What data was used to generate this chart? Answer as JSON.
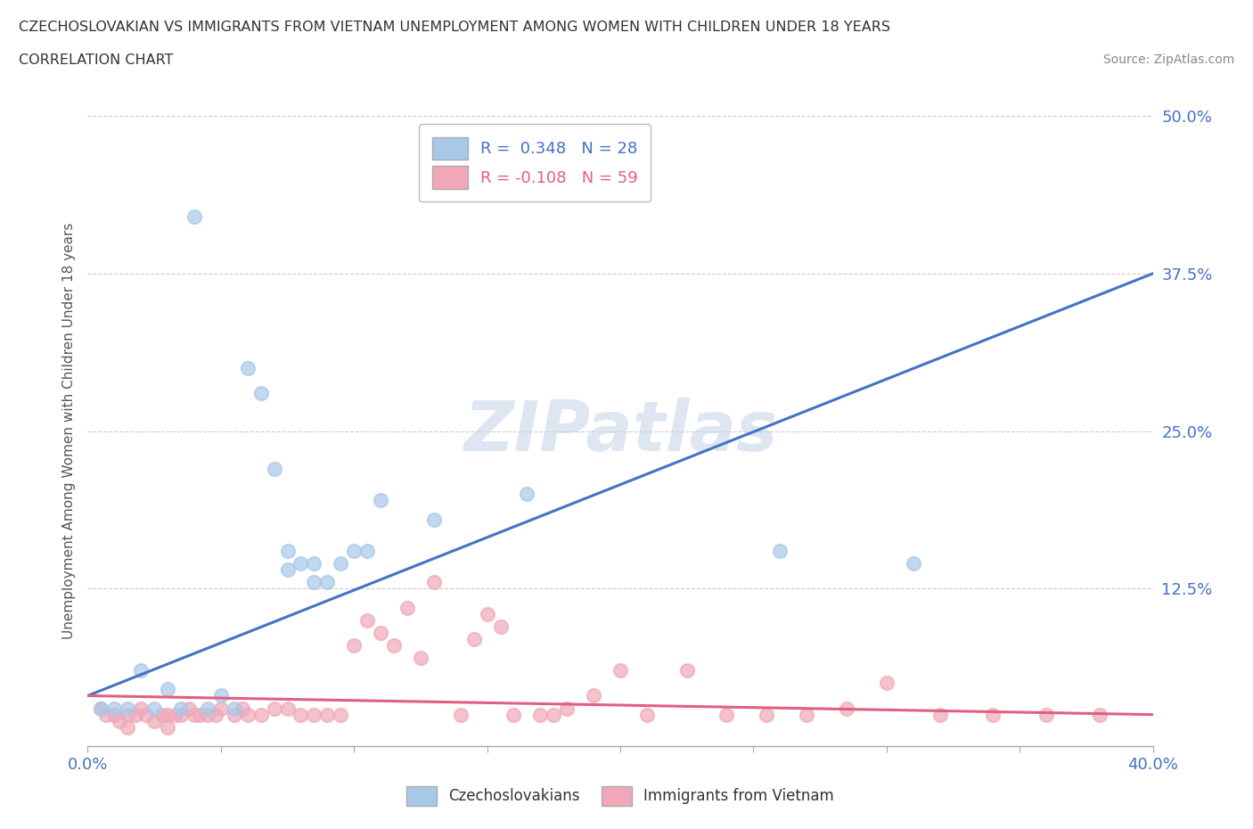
{
  "title_line1": "CZECHOSLOVAKIAN VS IMMIGRANTS FROM VIETNAM UNEMPLOYMENT AMONG WOMEN WITH CHILDREN UNDER 18 YEARS",
  "title_line2": "CORRELATION CHART",
  "source": "Source: ZipAtlas.com",
  "ylabel": "Unemployment Among Women with Children Under 18 years",
  "xlim": [
    0.0,
    0.4
  ],
  "ylim": [
    0.0,
    0.5
  ],
  "yticks": [
    0.0,
    0.125,
    0.25,
    0.375,
    0.5
  ],
  "ytick_labels": [
    "",
    "12.5%",
    "25.0%",
    "37.5%",
    "50.0%"
  ],
  "xticks": [
    0.0,
    0.05,
    0.1,
    0.15,
    0.2,
    0.25,
    0.3,
    0.35,
    0.4
  ],
  "xtick_labels": [
    "0.0%",
    "",
    "",
    "",
    "",
    "",
    "",
    "",
    "40.0%"
  ],
  "legend_r1": "R =  0.348   N = 28",
  "legend_r2": "R = -0.108   N = 59",
  "blue_color": "#A8C8E8",
  "pink_color": "#F0A8B8",
  "line_blue": "#4472C4",
  "line_pink": "#E06080",
  "watermark": "ZIPatlas",
  "czecho_points_x": [
    0.005,
    0.01,
    0.015,
    0.02,
    0.025,
    0.03,
    0.035,
    0.04,
    0.045,
    0.05,
    0.055,
    0.06,
    0.065,
    0.07,
    0.075,
    0.075,
    0.08,
    0.085,
    0.085,
    0.09,
    0.095,
    0.1,
    0.105,
    0.11,
    0.13,
    0.165,
    0.26,
    0.31
  ],
  "czecho_points_y": [
    0.03,
    0.03,
    0.03,
    0.06,
    0.03,
    0.045,
    0.03,
    0.42,
    0.03,
    0.04,
    0.03,
    0.3,
    0.28,
    0.22,
    0.155,
    0.14,
    0.145,
    0.13,
    0.145,
    0.13,
    0.145,
    0.155,
    0.155,
    0.195,
    0.18,
    0.2,
    0.155,
    0.145
  ],
  "vietnam_points_x": [
    0.005,
    0.007,
    0.01,
    0.012,
    0.015,
    0.015,
    0.018,
    0.02,
    0.022,
    0.025,
    0.028,
    0.03,
    0.03,
    0.033,
    0.035,
    0.038,
    0.04,
    0.042,
    0.045,
    0.048,
    0.05,
    0.055,
    0.058,
    0.06,
    0.065,
    0.07,
    0.075,
    0.08,
    0.085,
    0.09,
    0.095,
    0.1,
    0.105,
    0.11,
    0.115,
    0.12,
    0.125,
    0.13,
    0.14,
    0.145,
    0.15,
    0.155,
    0.16,
    0.17,
    0.175,
    0.18,
    0.19,
    0.2,
    0.21,
    0.225,
    0.24,
    0.255,
    0.27,
    0.285,
    0.3,
    0.32,
    0.34,
    0.36,
    0.38
  ],
  "vietnam_points_y": [
    0.03,
    0.025,
    0.025,
    0.02,
    0.025,
    0.015,
    0.025,
    0.03,
    0.025,
    0.02,
    0.025,
    0.025,
    0.015,
    0.025,
    0.025,
    0.03,
    0.025,
    0.025,
    0.025,
    0.025,
    0.03,
    0.025,
    0.03,
    0.025,
    0.025,
    0.03,
    0.03,
    0.025,
    0.025,
    0.025,
    0.025,
    0.08,
    0.1,
    0.09,
    0.08,
    0.11,
    0.07,
    0.13,
    0.025,
    0.085,
    0.105,
    0.095,
    0.025,
    0.025,
    0.025,
    0.03,
    0.04,
    0.06,
    0.025,
    0.06,
    0.025,
    0.025,
    0.025,
    0.03,
    0.05,
    0.025,
    0.025,
    0.025,
    0.025
  ],
  "czecho_line_x": [
    0.0,
    0.4
  ],
  "czecho_line_y": [
    0.04,
    0.375
  ],
  "vietnam_line_x": [
    0.0,
    0.4
  ],
  "vietnam_line_y": [
    0.04,
    0.025
  ]
}
